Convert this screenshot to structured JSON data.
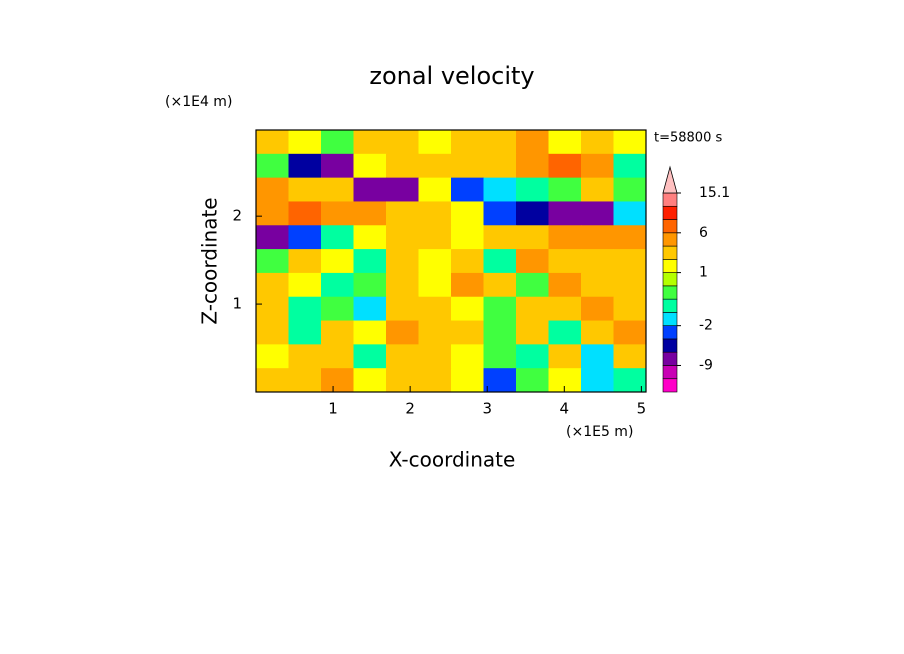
{
  "chart_data": {
    "type": "contour",
    "title": "zonal velocity",
    "x_label": "X-coordinate",
    "y_label": "Z-coordinate",
    "x_unit": "(×1E5 m)",
    "y_unit": "(×1E4 m)",
    "time_label": "t=58800 s",
    "xlim": [
      0,
      5.06
    ],
    "ylim": [
      0,
      2.98
    ],
    "xticks": [
      1,
      2,
      3,
      4,
      5
    ],
    "yticks": [
      1,
      2
    ],
    "z": [
      [
        2,
        1,
        0,
        3,
        2,
        1,
        2,
        3,
        4,
        1,
        3,
        1
      ],
      [
        0,
        -6,
        -8,
        1,
        2,
        3,
        2,
        3,
        4,
        6,
        4,
        -1
      ],
      [
        4,
        3,
        3,
        -7,
        -8,
        1,
        -4,
        -2,
        -1,
        0,
        2,
        0
      ],
      [
        5,
        6,
        5,
        4,
        3,
        2,
        1,
        -4,
        -6,
        -8,
        -7,
        -2
      ],
      [
        -7,
        -3,
        -1,
        1,
        2,
        3,
        1,
        2,
        3,
        4,
        5,
        4
      ],
      [
        0,
        2,
        1,
        -1,
        3,
        1,
        2,
        -1,
        4,
        2,
        3,
        2
      ],
      [
        2,
        1,
        -1,
        0,
        2,
        1,
        4,
        3,
        0,
        4,
        2,
        3
      ],
      [
        3,
        -1,
        0,
        -2,
        2,
        3,
        1,
        0,
        3,
        2,
        4,
        2
      ],
      [
        2,
        -1,
        3,
        1,
        4,
        2,
        2,
        0,
        2,
        -1,
        2,
        5
      ],
      [
        1,
        3,
        2,
        -1,
        2,
        3,
        1,
        0,
        -1,
        2,
        -2,
        3
      ],
      [
        3,
        2,
        4,
        1,
        3,
        2,
        1,
        -3,
        0,
        1,
        -2,
        -1
      ]
    ],
    "levels": [
      -15,
      -12,
      -9,
      -6,
      -4,
      -2,
      -1,
      0,
      0.5,
      1,
      2,
      4,
      6,
      9,
      12,
      15.1
    ],
    "colors": [
      "#ff00c8",
      "#c800b4",
      "#7800a0",
      "#0000a0",
      "#0040ff",
      "#00e0ff",
      "#00ffa0",
      "#40ff40",
      "#b4ff00",
      "#ffff00",
      "#ffc800",
      "#ff9600",
      "#ff6400",
      "#ff2000",
      "#ff8080"
    ],
    "extend_color": "#ffc0c0",
    "colorbar_ticks": [
      15.1,
      6,
      1,
      -2,
      -9
    ]
  }
}
